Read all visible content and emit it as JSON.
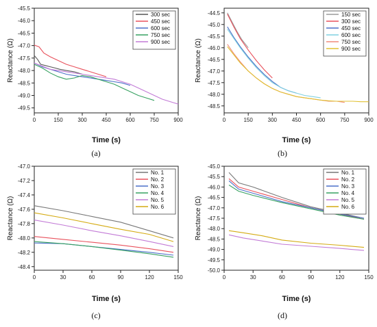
{
  "chart_data": [
    {
      "type": "line",
      "panel_label": "(a)",
      "xlabel": "Time (s)",
      "ylabel": "Reactance (Ω)",
      "xlim": [
        0,
        900
      ],
      "ylim": [
        -49.7,
        -45.5
      ],
      "xticks": [
        0,
        150,
        300,
        450,
        600,
        750,
        900
      ],
      "yticks": [
        -45.5,
        -46.0,
        -46.5,
        -47.0,
        -47.5,
        -48.0,
        -48.5,
        -49.0,
        -49.5
      ],
      "legend_position": "top-right",
      "series": [
        {
          "name": "300 sec",
          "color": "#555555",
          "x": [
            0,
            20,
            40,
            70,
            100,
            130,
            160,
            200,
            250,
            300
          ],
          "y": [
            -47.4,
            -47.55,
            -47.75,
            -47.8,
            -47.85,
            -47.9,
            -47.95,
            -48.0,
            -48.05,
            -48.15
          ]
        },
        {
          "name": "450 sec",
          "color": "#e8505b",
          "x": [
            0,
            30,
            60,
            100,
            150,
            200,
            250,
            300,
            350,
            400,
            450
          ],
          "y": [
            -46.98,
            -47.05,
            -47.3,
            -47.45,
            -47.6,
            -47.75,
            -47.85,
            -47.95,
            -48.05,
            -48.15,
            -48.25
          ]
        },
        {
          "name": "600 sec",
          "color": "#4a6fc8",
          "x": [
            0,
            50,
            100,
            150,
            200,
            250,
            300,
            350,
            400,
            450,
            500,
            550,
            600
          ],
          "y": [
            -47.7,
            -47.85,
            -47.95,
            -48.05,
            -48.15,
            -48.2,
            -48.25,
            -48.3,
            -48.35,
            -48.4,
            -48.45,
            -48.5,
            -48.6
          ]
        },
        {
          "name": "750 sec",
          "color": "#35a060",
          "x": [
            0,
            50,
            100,
            150,
            200,
            250,
            300,
            350,
            400,
            450,
            500,
            550,
            600,
            650,
            700,
            750
          ],
          "y": [
            -47.75,
            -47.9,
            -48.1,
            -48.25,
            -48.35,
            -48.3,
            -48.2,
            -48.25,
            -48.35,
            -48.45,
            -48.55,
            -48.7,
            -48.85,
            -49.0,
            -49.1,
            -49.2
          ]
        },
        {
          "name": "900 sec",
          "color": "#c27ad6",
          "x": [
            0,
            100,
            200,
            300,
            400,
            500,
            600,
            700,
            800,
            900
          ],
          "y": [
            -47.7,
            -47.95,
            -48.05,
            -48.15,
            -48.25,
            -48.35,
            -48.55,
            -48.85,
            -49.15,
            -49.35
          ]
        }
      ]
    },
    {
      "type": "line",
      "panel_label": "(b)",
      "xlabel": "Time (s)",
      "ylabel": "Reactance (Ω)",
      "xlim": [
        0,
        900
      ],
      "ylim": [
        -48.8,
        -44.3
      ],
      "xticks": [
        0,
        150,
        300,
        450,
        600,
        750,
        900
      ],
      "yticks": [
        -44.5,
        -45.0,
        -45.5,
        -46.0,
        -46.5,
        -47.0,
        -47.5,
        -48.0,
        -48.5
      ],
      "legend_position": "top-right",
      "series": [
        {
          "name": "150 sec",
          "color": "#9a9a9a",
          "x": [
            20,
            50,
            80,
            110,
            150
          ],
          "y": [
            -44.5,
            -44.9,
            -45.3,
            -45.65,
            -46.0
          ]
        },
        {
          "name": "300 sec",
          "color": "#e8505b",
          "x": [
            20,
            60,
            100,
            150,
            200,
            250,
            300
          ],
          "y": [
            -44.55,
            -45.1,
            -45.6,
            -46.1,
            -46.55,
            -46.95,
            -47.3
          ]
        },
        {
          "name": "450 sec",
          "color": "#4a6fc8",
          "x": [
            20,
            60,
            100,
            150,
            200,
            250,
            300,
            350,
            400,
            450
          ],
          "y": [
            -45.1,
            -45.55,
            -45.95,
            -46.4,
            -46.8,
            -47.15,
            -47.45,
            -47.7,
            -47.85,
            -47.95
          ]
        },
        {
          "name": "600 sec",
          "color": "#7fd0e0",
          "x": [
            20,
            60,
            100,
            150,
            200,
            250,
            300,
            350,
            400,
            450,
            500,
            550,
            600
          ],
          "y": [
            -45.2,
            -45.6,
            -46.0,
            -46.45,
            -46.85,
            -47.2,
            -47.5,
            -47.7,
            -47.85,
            -47.95,
            -48.05,
            -48.1,
            -48.15
          ]
        },
        {
          "name": "750 sec",
          "color": "#f08a7a",
          "x": [
            20,
            60,
            100,
            150,
            200,
            250,
            300,
            350,
            400,
            450,
            500,
            550,
            600,
            650,
            700,
            750
          ],
          "y": [
            -45.85,
            -46.25,
            -46.6,
            -47.0,
            -47.3,
            -47.55,
            -47.75,
            -47.9,
            -48.0,
            -48.1,
            -48.15,
            -48.2,
            -48.25,
            -48.3,
            -48.3,
            -48.35
          ]
        },
        {
          "name": "900 sec",
          "color": "#e0c030",
          "x": [
            20,
            60,
            100,
            150,
            200,
            250,
            300,
            350,
            400,
            450,
            500,
            550,
            600,
            650,
            700,
            750,
            800,
            850,
            900
          ],
          "y": [
            -45.95,
            -46.3,
            -46.65,
            -47.0,
            -47.3,
            -47.55,
            -47.75,
            -47.9,
            -48.0,
            -48.1,
            -48.15,
            -48.2,
            -48.25,
            -48.28,
            -48.3,
            -48.3,
            -48.3,
            -48.32,
            -48.32
          ]
        }
      ]
    },
    {
      "type": "line",
      "panel_label": "(c)",
      "xlabel": "Time (s)",
      "ylabel": "Reactance (Ω)",
      "xlim": [
        0,
        150
      ],
      "ylim": [
        -48.45,
        -47.0
      ],
      "xticks": [
        0,
        30,
        60,
        90,
        120,
        150
      ],
      "yticks": [
        -47.0,
        -47.2,
        -47.4,
        -47.6,
        -47.8,
        -48.0,
        -48.2,
        -48.4
      ],
      "legend_position": "top-right",
      "series": [
        {
          "name": "No. 1",
          "color": "#777777",
          "x": [
            0,
            30,
            60,
            90,
            120,
            145
          ],
          "y": [
            -47.55,
            -47.62,
            -47.7,
            -47.78,
            -47.9,
            -48.0
          ]
        },
        {
          "name": "No. 2",
          "color": "#e8505b",
          "x": [
            0,
            30,
            60,
            90,
            120,
            145
          ],
          "y": [
            -47.98,
            -48.02,
            -48.06,
            -48.1,
            -48.15,
            -48.2
          ]
        },
        {
          "name": "No. 3",
          "color": "#4a6fc8",
          "x": [
            0,
            30,
            60,
            90,
            120,
            145
          ],
          "y": [
            -48.07,
            -48.08,
            -48.12,
            -48.16,
            -48.2,
            -48.24
          ]
        },
        {
          "name": "No. 4",
          "color": "#35a060",
          "x": [
            0,
            30,
            60,
            90,
            120,
            145
          ],
          "y": [
            -48.05,
            -48.08,
            -48.12,
            -48.17,
            -48.22,
            -48.27
          ]
        },
        {
          "name": "No. 5",
          "color": "#c27ad6",
          "x": [
            0,
            30,
            60,
            90,
            120,
            145
          ],
          "y": [
            -47.75,
            -47.82,
            -47.9,
            -47.97,
            -48.05,
            -48.12
          ]
        },
        {
          "name": "No. 6",
          "color": "#d4aa10",
          "x": [
            0,
            30,
            60,
            90,
            120,
            145
          ],
          "y": [
            -47.65,
            -47.72,
            -47.8,
            -47.88,
            -47.95,
            -48.05
          ]
        }
      ]
    },
    {
      "type": "line",
      "panel_label": "(d)",
      "xlabel": "Time (s)",
      "ylabel": "Reactance (Ω)",
      "xlim": [
        0,
        150
      ],
      "ylim": [
        -50.0,
        -45.0
      ],
      "xticks": [
        0,
        30,
        60,
        90,
        120,
        150
      ],
      "yticks": [
        -45.0,
        -45.5,
        -46.0,
        -46.5,
        -47.0,
        -47.5,
        -48.0,
        -48.5,
        -49.0,
        -49.5,
        -50.0
      ],
      "legend_position": "top-right",
      "series": [
        {
          "name": "No. 1",
          "color": "#777777",
          "x": [
            5,
            15,
            30,
            60,
            90,
            120,
            145
          ],
          "y": [
            -45.3,
            -45.8,
            -46.0,
            -46.5,
            -46.95,
            -47.25,
            -47.5
          ]
        },
        {
          "name": "No. 2",
          "color": "#e8505b",
          "x": [
            5,
            15,
            30,
            60,
            90,
            120,
            145
          ],
          "y": [
            -45.6,
            -46.0,
            -46.2,
            -46.6,
            -47.0,
            -47.3,
            -47.55
          ]
        },
        {
          "name": "No. 3",
          "color": "#4a6fc8",
          "x": [
            5,
            15,
            30,
            60,
            90,
            120,
            145
          ],
          "y": [
            -45.7,
            -46.1,
            -46.3,
            -46.7,
            -47.0,
            -47.3,
            -47.5
          ]
        },
        {
          "name": "No. 4",
          "color": "#35a060",
          "x": [
            5,
            15,
            30,
            60,
            90,
            120,
            145
          ],
          "y": [
            -45.9,
            -46.2,
            -46.4,
            -46.75,
            -47.05,
            -47.35,
            -47.55
          ]
        },
        {
          "name": "No. 5",
          "color": "#c27ad6",
          "x": [
            5,
            20,
            40,
            60,
            90,
            120,
            145
          ],
          "y": [
            -48.3,
            -48.45,
            -48.6,
            -48.75,
            -48.85,
            -48.95,
            -49.05
          ]
        },
        {
          "name": "No. 6",
          "color": "#d4aa10",
          "x": [
            5,
            20,
            40,
            60,
            90,
            120,
            145
          ],
          "y": [
            -48.1,
            -48.2,
            -48.35,
            -48.55,
            -48.7,
            -48.8,
            -48.9
          ]
        }
      ]
    }
  ]
}
